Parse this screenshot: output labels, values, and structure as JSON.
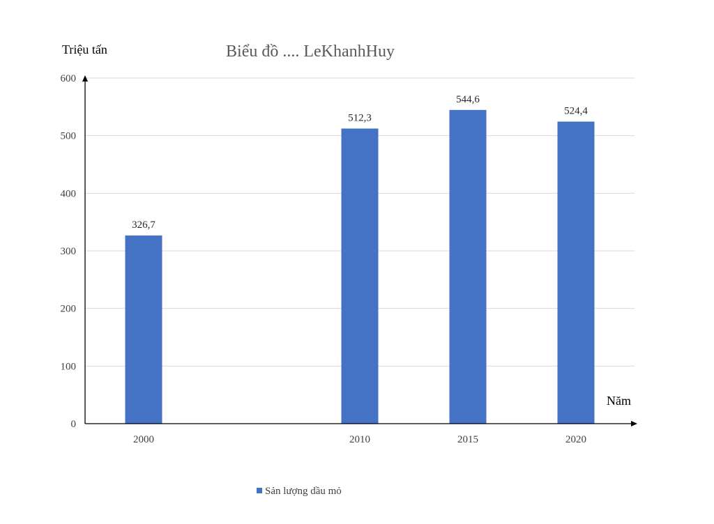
{
  "chart_data": {
    "type": "bar",
    "title": "Biểu đồ .... LeKhanhHuy",
    "ylabel": "Triệu tấn",
    "xlabel": "Năm",
    "categories": [
      "2000",
      "2010",
      "2015",
      "2020"
    ],
    "x_values": [
      2000,
      2010,
      2015,
      2020
    ],
    "series": [
      {
        "name": "Sản lượng dầu mỏ",
        "values": [
          326.7,
          512.3,
          544.6,
          524.4
        ],
        "labels": [
          "326,7",
          "512,3",
          "544,6",
          "524,4"
        ],
        "color": "#4472c4"
      }
    ],
    "ylim": [
      0,
      600
    ],
    "yticks": [
      0,
      100,
      200,
      300,
      400,
      500,
      600
    ],
    "grid": true,
    "legend_position": "bottom"
  }
}
